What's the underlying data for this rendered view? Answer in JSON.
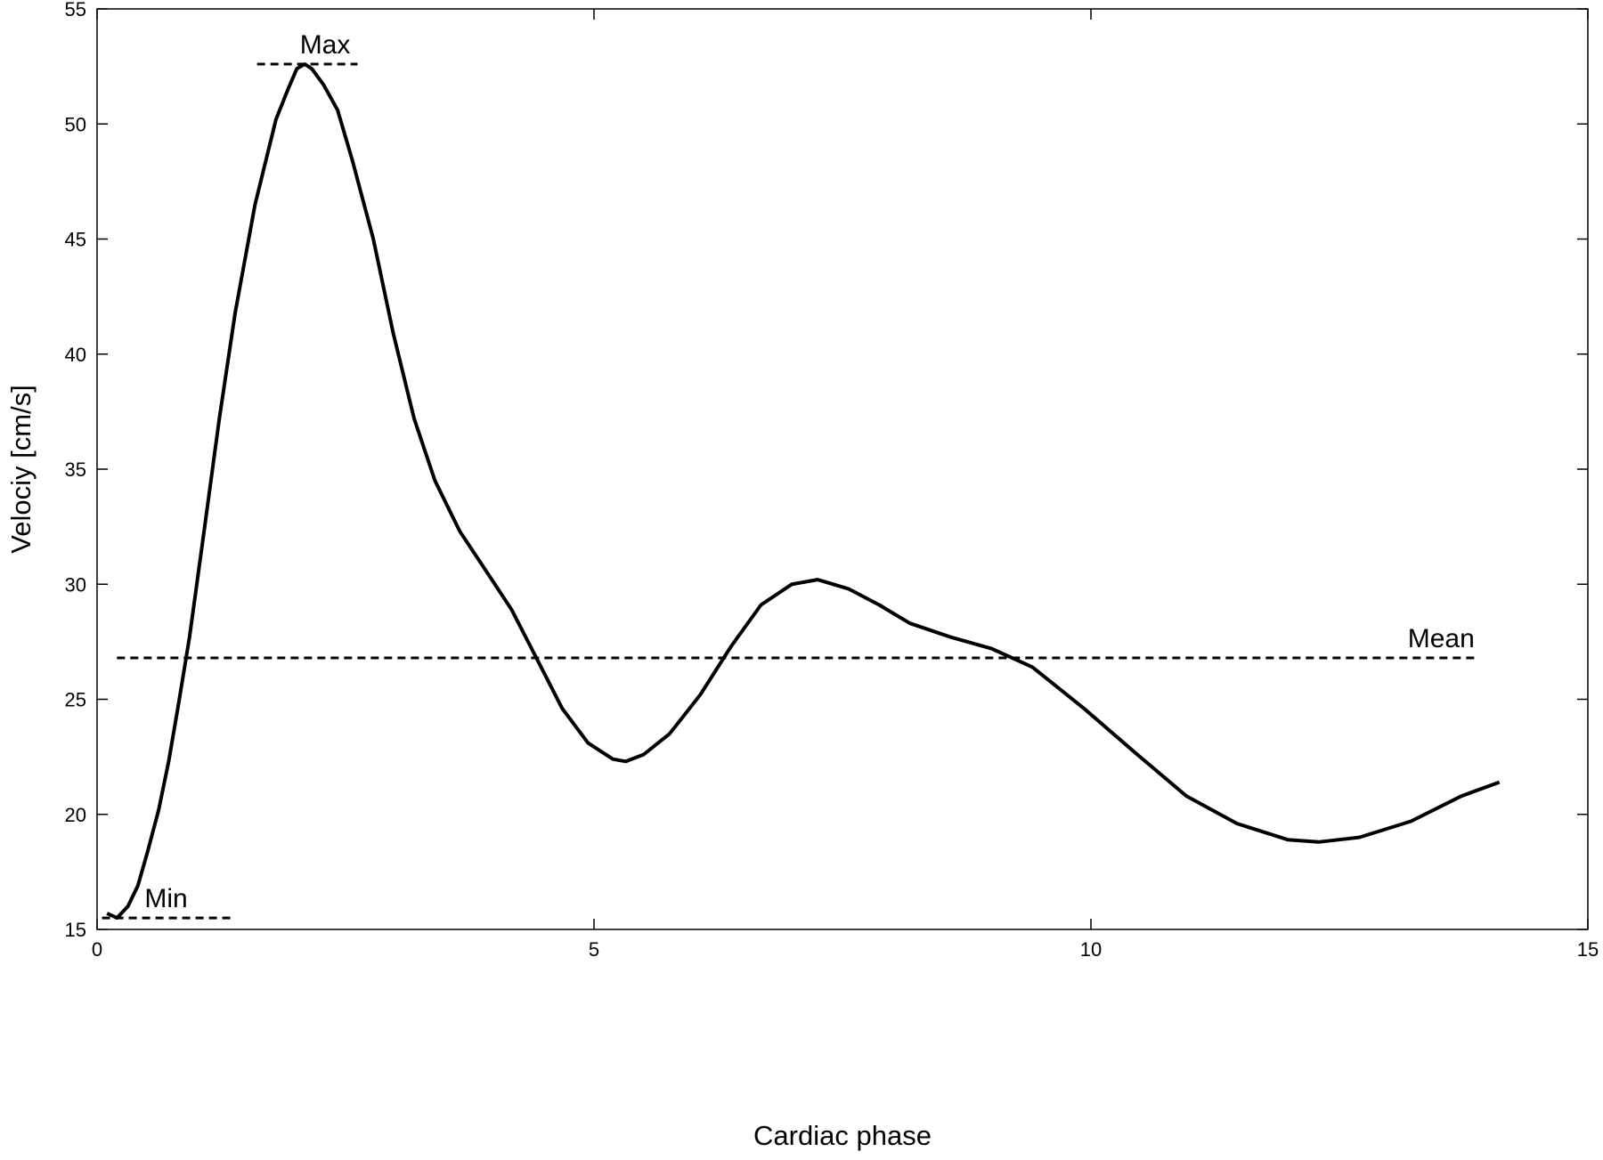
{
  "chart_data": {
    "type": "line",
    "xlabel": "Cardiac phase",
    "ylabel": "Velociy [cm/s]",
    "xlim": [
      0,
      15
    ],
    "xticks": [
      0,
      5,
      10,
      15
    ],
    "ylim": [
      15,
      55
    ],
    "yticks": [
      15,
      20,
      25,
      30,
      35,
      40,
      45,
      50,
      55
    ],
    "grid": false,
    "series": [
      {
        "color": "#000000",
        "x": [
          0.1,
          0.2,
          0.31,
          0.41,
          0.51,
          0.62,
          0.72,
          0.82,
          0.93,
          1.08,
          1.23,
          1.39,
          1.59,
          1.8,
          1.92,
          2.01,
          2.09,
          2.16,
          2.28,
          2.42,
          2.57,
          2.78,
          2.98,
          3.19,
          3.4,
          3.65,
          3.91,
          4.17,
          4.42,
          4.68,
          4.94,
          5.19,
          5.32,
          5.5,
          5.76,
          6.07,
          6.38,
          6.68,
          6.99,
          7.25,
          7.56,
          7.87,
          8.18,
          8.59,
          9.0,
          9.41,
          9.93,
          10.44,
          10.96,
          11.47,
          11.98,
          12.29,
          12.7,
          13.22,
          13.73,
          14.11
        ],
        "values": [
          15.7,
          15.5,
          16.0,
          16.9,
          18.4,
          20.2,
          22.3,
          24.8,
          27.7,
          32.4,
          37.2,
          41.8,
          46.5,
          50.2,
          51.5,
          52.4,
          52.6,
          52.4,
          51.7,
          50.6,
          48.4,
          45.0,
          40.9,
          37.2,
          34.5,
          32.3,
          30.6,
          28.9,
          26.8,
          24.6,
          23.1,
          22.4,
          22.3,
          22.6,
          23.5,
          25.2,
          27.3,
          29.1,
          30.0,
          30.2,
          29.8,
          29.1,
          28.3,
          27.7,
          27.2,
          26.4,
          24.6,
          22.7,
          20.8,
          19.6,
          18.9,
          18.8,
          19.0,
          19.7,
          20.8,
          21.4
        ]
      }
    ],
    "reference_lines": [
      {
        "label": "Max",
        "y": 52.6,
        "x": [
          1.61,
          2.62
        ]
      },
      {
        "label": "Mean",
        "y": 26.8,
        "x": [
          0.2,
          13.86
        ]
      },
      {
        "label": "Min",
        "y": 15.5,
        "x": [
          0.05,
          1.34
        ]
      }
    ]
  }
}
